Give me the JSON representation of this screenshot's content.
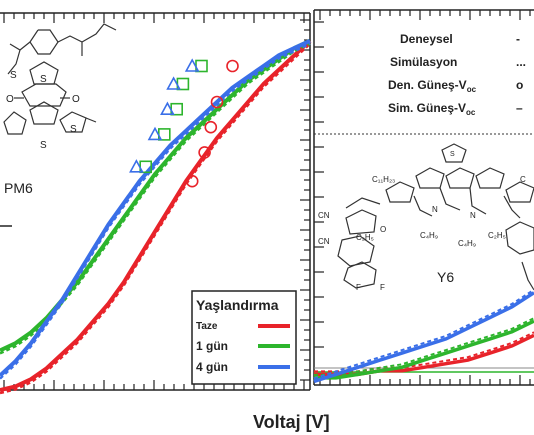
{
  "chart_data": [
    {
      "type": "line",
      "xlabel": "Voltaj [V]",
      "molecule_label": "PM6",
      "legend": {
        "title": "Yaşlandırma",
        "placement": "bottom-right",
        "entries": [
          {
            "label": "Taze",
            "color": "#e8232a"
          },
          {
            "label": "1 gün",
            "color": "#2db52d"
          },
          {
            "label": "4 gün",
            "color": "#3a6fe8"
          }
        ]
      },
      "series": [
        {
          "name": "Taze",
          "color": "#e8232a",
          "style": "solid",
          "x": [
            0.0,
            0.05,
            0.1,
            0.15,
            0.2,
            0.25,
            0.3,
            0.35,
            0.4,
            0.45,
            0.5,
            0.55,
            0.6,
            0.65,
            0.7,
            0.75,
            0.8,
            0.85,
            0.9,
            0.95,
            1.0
          ],
          "y": [
            0.0,
            0.01,
            0.03,
            0.06,
            0.1,
            0.14,
            0.19,
            0.24,
            0.3,
            0.37,
            0.44,
            0.51,
            0.58,
            0.64,
            0.7,
            0.75,
            0.8,
            0.85,
            0.89,
            0.93,
            0.97
          ]
        },
        {
          "name": "1 gün",
          "color": "#2db52d",
          "style": "solid",
          "x": [
            0.0,
            0.05,
            0.1,
            0.15,
            0.2,
            0.25,
            0.3,
            0.35,
            0.4,
            0.45,
            0.5,
            0.55,
            0.6,
            0.65,
            0.7,
            0.75,
            0.8,
            0.85,
            0.9,
            0.95,
            1.0
          ],
          "y": [
            0.11,
            0.13,
            0.16,
            0.2,
            0.25,
            0.3,
            0.36,
            0.42,
            0.48,
            0.54,
            0.6,
            0.65,
            0.7,
            0.74,
            0.78,
            0.82,
            0.86,
            0.89,
            0.92,
            0.95,
            0.97
          ]
        },
        {
          "name": "4 gün",
          "color": "#3a6fe8",
          "style": "solid",
          "x": [
            0.0,
            0.05,
            0.1,
            0.15,
            0.2,
            0.25,
            0.3,
            0.35,
            0.4,
            0.45,
            0.5,
            0.55,
            0.6,
            0.65,
            0.7,
            0.75,
            0.8,
            0.85,
            0.9,
            0.95,
            1.0
          ],
          "y": [
            0.04,
            0.08,
            0.13,
            0.19,
            0.25,
            0.32,
            0.39,
            0.46,
            0.52,
            0.58,
            0.63,
            0.68,
            0.72,
            0.76,
            0.8,
            0.84,
            0.87,
            0.9,
            0.93,
            0.95,
            0.97
          ]
        }
      ],
      "voc_markers": [
        {
          "series": "Taze",
          "shape": "circle",
          "color": "#e8232a",
          "points": [
            [
              0.62,
              0.58
            ],
            [
              0.66,
              0.66
            ],
            [
              0.68,
              0.73
            ],
            [
              0.7,
              0.8
            ],
            [
              0.75,
              0.9
            ]
          ]
        },
        {
          "series": "1 gün",
          "shape": "square",
          "color": "#2db52d",
          "points": [
            [
              0.47,
              0.62
            ],
            [
              0.53,
              0.71
            ],
            [
              0.57,
              0.78
            ],
            [
              0.59,
              0.85
            ],
            [
              0.65,
              0.9
            ]
          ]
        },
        {
          "series": "4 gün",
          "shape": "triangle",
          "color": "#3a6fe8",
          "points": [
            [
              0.44,
              0.62
            ],
            [
              0.5,
              0.71
            ],
            [
              0.54,
              0.78
            ],
            [
              0.56,
              0.85
            ],
            [
              0.62,
              0.9
            ]
          ]
        }
      ],
      "ylim": [
        0,
        1
      ],
      "xlim": [
        0,
        1
      ],
      "grid": false
    },
    {
      "type": "line",
      "molecule_label": "Y6",
      "legend": {
        "placement": "top",
        "entries": [
          {
            "label": "Deneysel",
            "symbol": "-"
          },
          {
            "label": "Simülasyon",
            "symbol": "..."
          },
          {
            "label": "Den. Güneş-V",
            "subscript": "oc",
            "symbol": "o"
          },
          {
            "label": "Sim. Güneş-V",
            "subscript": "oc",
            "symbol": "–"
          }
        ]
      },
      "series": [
        {
          "name": "Taze",
          "color": "#e8232a",
          "x": [
            0.0,
            0.1,
            0.2,
            0.3,
            0.4,
            0.5,
            0.6,
            0.7,
            0.8,
            0.9,
            1.0
          ],
          "y": [
            0.03,
            0.03,
            0.03,
            0.04,
            0.04,
            0.05,
            0.06,
            0.07,
            0.09,
            0.11,
            0.14
          ]
        },
        {
          "name": "1 gün",
          "color": "#2db52d",
          "x": [
            0.0,
            0.1,
            0.2,
            0.3,
            0.4,
            0.5,
            0.6,
            0.7,
            0.8,
            0.9,
            1.0
          ],
          "y": [
            0.02,
            0.02,
            0.03,
            0.04,
            0.05,
            0.07,
            0.09,
            0.11,
            0.13,
            0.15,
            0.18
          ]
        },
        {
          "name": "4 gün",
          "color": "#3a6fe8",
          "x": [
            0.0,
            0.1,
            0.2,
            0.3,
            0.4,
            0.5,
            0.6,
            0.7,
            0.8,
            0.9,
            1.0
          ],
          "y": [
            0.01,
            0.03,
            0.05,
            0.07,
            0.09,
            0.11,
            0.13,
            0.16,
            0.19,
            0.22,
            0.26
          ]
        }
      ],
      "ylim": [
        0,
        1
      ],
      "xlim": [
        0,
        1
      ],
      "grid": false
    }
  ]
}
